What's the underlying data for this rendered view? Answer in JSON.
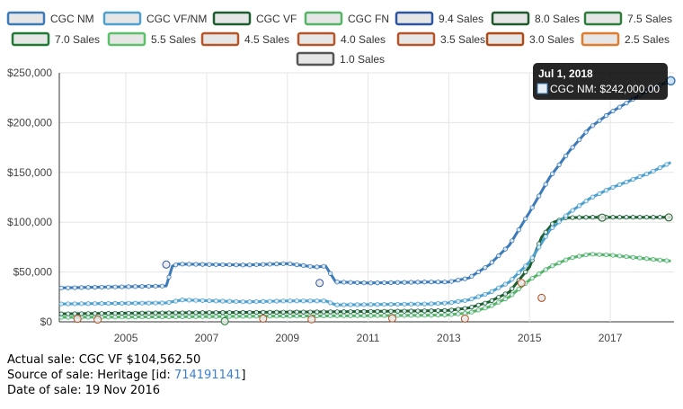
{
  "legend": [
    {
      "label": "CGC NM",
      "color": "#3d7ab8"
    },
    {
      "label": "CGC VF/NM",
      "color": "#4ca1cf"
    },
    {
      "label": "CGC VF",
      "color": "#1c5e2d"
    },
    {
      "label": "CGC FN",
      "color": "#52b464"
    },
    {
      "label": "9.4 Sales",
      "color": "#2e56a0"
    },
    {
      "label": "8.0 Sales",
      "color": "#1e5a2c"
    },
    {
      "label": "7.5 Sales",
      "color": "#2e7d3c"
    },
    {
      "label": "7.0 Sales",
      "color": "#1f7a33"
    },
    {
      "label": "5.5 Sales",
      "color": "#5cc06a"
    },
    {
      "label": "4.5 Sales",
      "color": "#b5562a"
    },
    {
      "label": "4.0 Sales",
      "color": "#b5562a"
    },
    {
      "label": "3.5 Sales",
      "color": "#b5562a"
    },
    {
      "label": "3.0 Sales",
      "color": "#b04a16"
    },
    {
      "label": "2.5 Sales",
      "color": "#e07c2c"
    },
    {
      "label": "1.0 Sales",
      "color": "#555555"
    }
  ],
  "tooltip": {
    "date": "Jul 1, 2018",
    "text": "CGC NM: $242,000.00",
    "swatch_color": "#3d7ab8"
  },
  "info": {
    "actual_sale": "Actual sale: CGC VF $104,562.50",
    "source_prefix": "Source of sale: Heritage [id: ",
    "source_id": "714191141",
    "source_suffix": "]",
    "date_of_sale": "Date of sale: 19 Nov 2016"
  },
  "chart_data": {
    "type": "line",
    "xlim": [
      2003.35,
      2018.58
    ],
    "ylim": [
      0,
      250000
    ],
    "y_ticks": [
      0,
      50000,
      100000,
      150000,
      200000,
      250000
    ],
    "y_tick_labels": [
      "$0",
      "$50,000",
      "$100,000",
      "$150,000",
      "$200,000",
      "$250,000"
    ],
    "x_ticks": [
      2005,
      2007,
      2009,
      2011,
      2013,
      2015,
      2017
    ],
    "x_tick_labels": [
      "2005",
      "2007",
      "2009",
      "2011",
      "2013",
      "2015",
      "2017"
    ],
    "grid": true,
    "legend_position": "top",
    "series": [
      {
        "name": "CGC NM",
        "color": "#3d7ab8",
        "points": [
          [
            2003.4,
            34000
          ],
          [
            2006.0,
            36000
          ],
          [
            2006.15,
            56000
          ],
          [
            2006.3,
            58000
          ],
          [
            2008.0,
            57000
          ],
          [
            2009.0,
            58500
          ],
          [
            2009.7,
            55000
          ],
          [
            2009.95,
            56000
          ],
          [
            2010.2,
            40000
          ],
          [
            2011.0,
            39000
          ],
          [
            2012.5,
            40000
          ],
          [
            2013.0,
            40000
          ],
          [
            2013.5,
            44000
          ],
          [
            2014.0,
            57000
          ],
          [
            2014.5,
            77000
          ],
          [
            2015.0,
            110000
          ],
          [
            2015.5,
            145000
          ],
          [
            2016.0,
            172000
          ],
          [
            2016.5,
            195000
          ],
          [
            2017.0,
            210000
          ],
          [
            2017.5,
            222000
          ],
          [
            2018.0,
            234000
          ],
          [
            2018.5,
            242000
          ]
        ]
      },
      {
        "name": "CGC VF/NM",
        "color": "#4ca1cf",
        "points": [
          [
            2003.4,
            18000
          ],
          [
            2006.0,
            19000
          ],
          [
            2006.4,
            22000
          ],
          [
            2008.0,
            20000
          ],
          [
            2009.0,
            21000
          ],
          [
            2009.95,
            21000
          ],
          [
            2010.2,
            17000
          ],
          [
            2012.5,
            18000
          ],
          [
            2013.0,
            19000
          ],
          [
            2013.5,
            22000
          ],
          [
            2014.0,
            29000
          ],
          [
            2014.5,
            40000
          ],
          [
            2015.0,
            60000
          ],
          [
            2015.5,
            92000
          ],
          [
            2016.0,
            110000
          ],
          [
            2016.5,
            124000
          ],
          [
            2017.0,
            134000
          ],
          [
            2017.5,
            142000
          ],
          [
            2018.0,
            150000
          ],
          [
            2018.5,
            160000
          ]
        ]
      },
      {
        "name": "CGC VF",
        "color": "#1c5e2d",
        "points": [
          [
            2003.4,
            8000
          ],
          [
            2006.0,
            9000
          ],
          [
            2008.0,
            9500
          ],
          [
            2010.0,
            10000
          ],
          [
            2012.5,
            11000
          ],
          [
            2013.0,
            11500
          ],
          [
            2013.5,
            14000
          ],
          [
            2014.0,
            20000
          ],
          [
            2014.5,
            30000
          ],
          [
            2015.0,
            55000
          ],
          [
            2015.3,
            85000
          ],
          [
            2015.6,
            100000
          ],
          [
            2015.9,
            104500
          ],
          [
            2016.5,
            105000
          ],
          [
            2017.0,
            105000
          ],
          [
            2018.5,
            105000
          ]
        ]
      },
      {
        "name": "CGC FN",
        "color": "#52b464",
        "points": [
          [
            2003.4,
            4500
          ],
          [
            2006.0,
            5000
          ],
          [
            2008.0,
            5500
          ],
          [
            2010.0,
            6000
          ],
          [
            2012.5,
            6500
          ],
          [
            2013.0,
            7000
          ],
          [
            2013.5,
            9000
          ],
          [
            2014.0,
            15000
          ],
          [
            2014.5,
            25000
          ],
          [
            2015.0,
            42000
          ],
          [
            2015.5,
            55000
          ],
          [
            2016.0,
            64000
          ],
          [
            2016.5,
            68000
          ],
          [
            2017.0,
            67000
          ],
          [
            2017.5,
            65000
          ],
          [
            2018.0,
            63000
          ],
          [
            2018.5,
            61000
          ]
        ]
      }
    ],
    "sales": [
      {
        "name": "9.4 Sales",
        "color": "#2e56a0",
        "points": [
          [
            2006.0,
            57500
          ],
          [
            2009.8,
            39000
          ]
        ]
      },
      {
        "name": "8.0 Sales",
        "color": "#1e5a2c",
        "points": [
          [
            2016.8,
            104562.5
          ],
          [
            2018.45,
            104800
          ]
        ]
      },
      {
        "name": "7.0 Sales",
        "color": "#1f7a33",
        "points": [
          [
            2007.45,
            600
          ]
        ]
      },
      {
        "name": "3.0 Sales",
        "color": "#b04a16",
        "points": [
          [
            2015.3,
            24000
          ]
        ]
      },
      {
        "name": "4.5 Sales",
        "color": "#b5562a",
        "points": [
          [
            2003.8,
            3000
          ],
          [
            2011.6,
            3500
          ],
          [
            2013.4,
            3200
          ],
          [
            2014.8,
            39000
          ]
        ]
      },
      {
        "name": "3.5 Sales",
        "color": "#b5562a",
        "points": [
          [
            2004.3,
            2200
          ]
        ]
      },
      {
        "name": "4.0 Sales",
        "color": "#b5562a",
        "points": [
          [
            2008.4,
            3200
          ],
          [
            2009.6,
            2500
          ]
        ]
      }
    ]
  }
}
